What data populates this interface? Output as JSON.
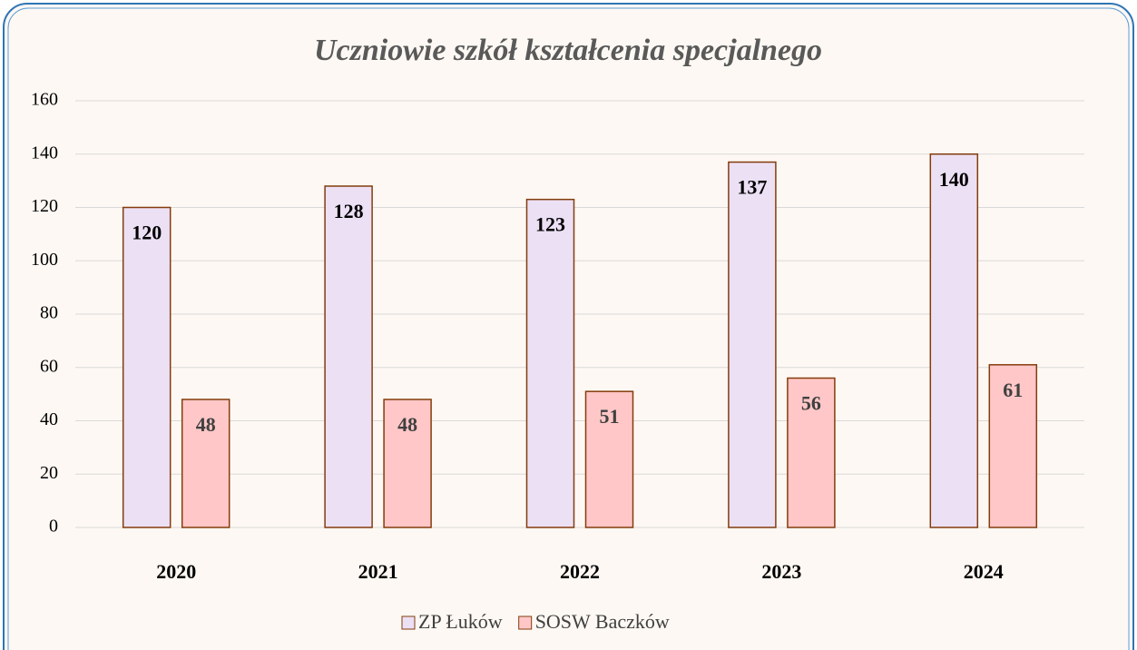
{
  "chart_data": {
    "type": "bar",
    "title": "Uczniowie szkół kształcenia specjalnego",
    "categories": [
      "2020",
      "2021",
      "2022",
      "2023",
      "2024"
    ],
    "series": [
      {
        "name": "ZP Łuków",
        "color": "#ece0f5",
        "values": [
          120,
          128,
          123,
          137,
          140
        ]
      },
      {
        "name": "SOSW Baczków",
        "color": "#ffc7c7",
        "values": [
          48,
          48,
          51,
          56,
          61
        ]
      }
    ],
    "edge_color": "#843c0c",
    "ylim": [
      0,
      160
    ],
    "yticks": [
      0,
      20,
      40,
      60,
      80,
      100,
      120,
      140,
      160
    ],
    "grid": true,
    "legend": "bottom"
  }
}
